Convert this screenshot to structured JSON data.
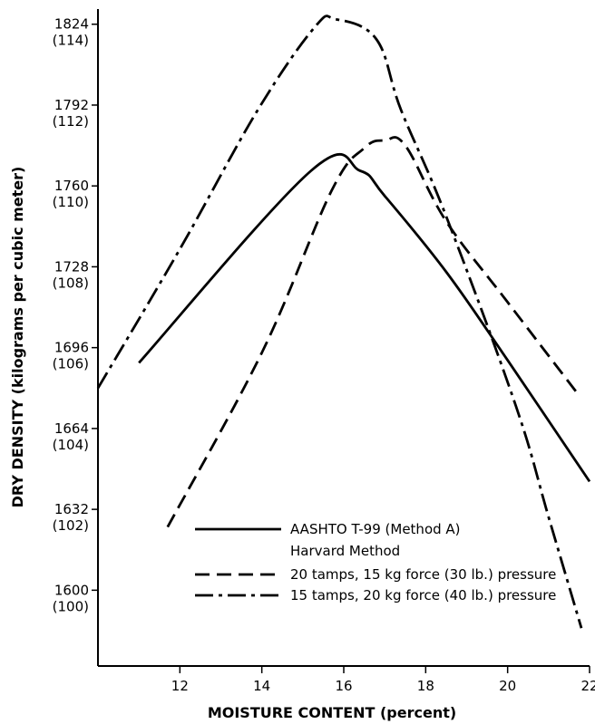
{
  "chart_data": {
    "type": "line",
    "xlabel": "MOISTURE CONTENT (percent)",
    "ylabel": "DRY DENSITY (kilograms per cubic meter)",
    "xlim": [
      10,
      22
    ],
    "ylim": [
      1570,
      1830
    ],
    "grid": false,
    "legend_position": "bottom-right",
    "x_ticks": [
      12,
      14,
      16,
      18,
      20,
      22
    ],
    "x_tick_labels": [
      "12",
      "14",
      "16",
      "18",
      "20",
      "22"
    ],
    "y_ticks": [
      1600,
      1632,
      1664,
      1696,
      1728,
      1760,
      1792,
      1824
    ],
    "y_tick_labels": [
      {
        "value": "1600",
        "alt": "(100)"
      },
      {
        "value": "1632",
        "alt": "(102)"
      },
      {
        "value": "1664",
        "alt": "(104)"
      },
      {
        "value": "1696",
        "alt": "(106)"
      },
      {
        "value": "1728",
        "alt": "(108)"
      },
      {
        "value": "1760",
        "alt": "(110)"
      },
      {
        "value": "1792",
        "alt": "(112)"
      },
      {
        "value": "1824",
        "alt": "(114)"
      }
    ],
    "legend_heading": "Harvard Method",
    "series": [
      {
        "name": "AASHTO T-99 (Method A)",
        "style": "solid",
        "color": "#000000",
        "points": [
          [
            11.0,
            1690
          ],
          [
            15.2,
            1766
          ],
          [
            16.4,
            1766
          ],
          [
            17.0,
            1756
          ],
          [
            18.5,
            1726
          ],
          [
            20.0,
            1691
          ],
          [
            22.0,
            1643
          ]
        ]
      },
      {
        "name": "20 tamps, 15 kg force (30 lb.) pressure",
        "style": "dashed",
        "color": "#000000",
        "points": [
          [
            11.7,
            1625
          ],
          [
            14.0,
            1694
          ],
          [
            15.7,
            1758
          ],
          [
            16.5,
            1775
          ],
          [
            17.0,
            1778
          ],
          [
            17.5,
            1776
          ],
          [
            18.5,
            1746
          ],
          [
            20.0,
            1714
          ],
          [
            21.7,
            1678
          ]
        ]
      },
      {
        "name": "15 tamps, 20 kg force (40 lb.) pressure",
        "style": "dashdot",
        "color": "#000000",
        "points": [
          [
            10.0,
            1680
          ],
          [
            12.0,
            1735
          ],
          [
            13.9,
            1790
          ],
          [
            15.3,
            1823
          ],
          [
            15.8,
            1826
          ],
          [
            16.8,
            1818
          ],
          [
            17.4,
            1790
          ],
          [
            18.5,
            1748
          ],
          [
            20.2,
            1673
          ],
          [
            21.0,
            1629
          ],
          [
            21.8,
            1585
          ]
        ]
      }
    ]
  }
}
